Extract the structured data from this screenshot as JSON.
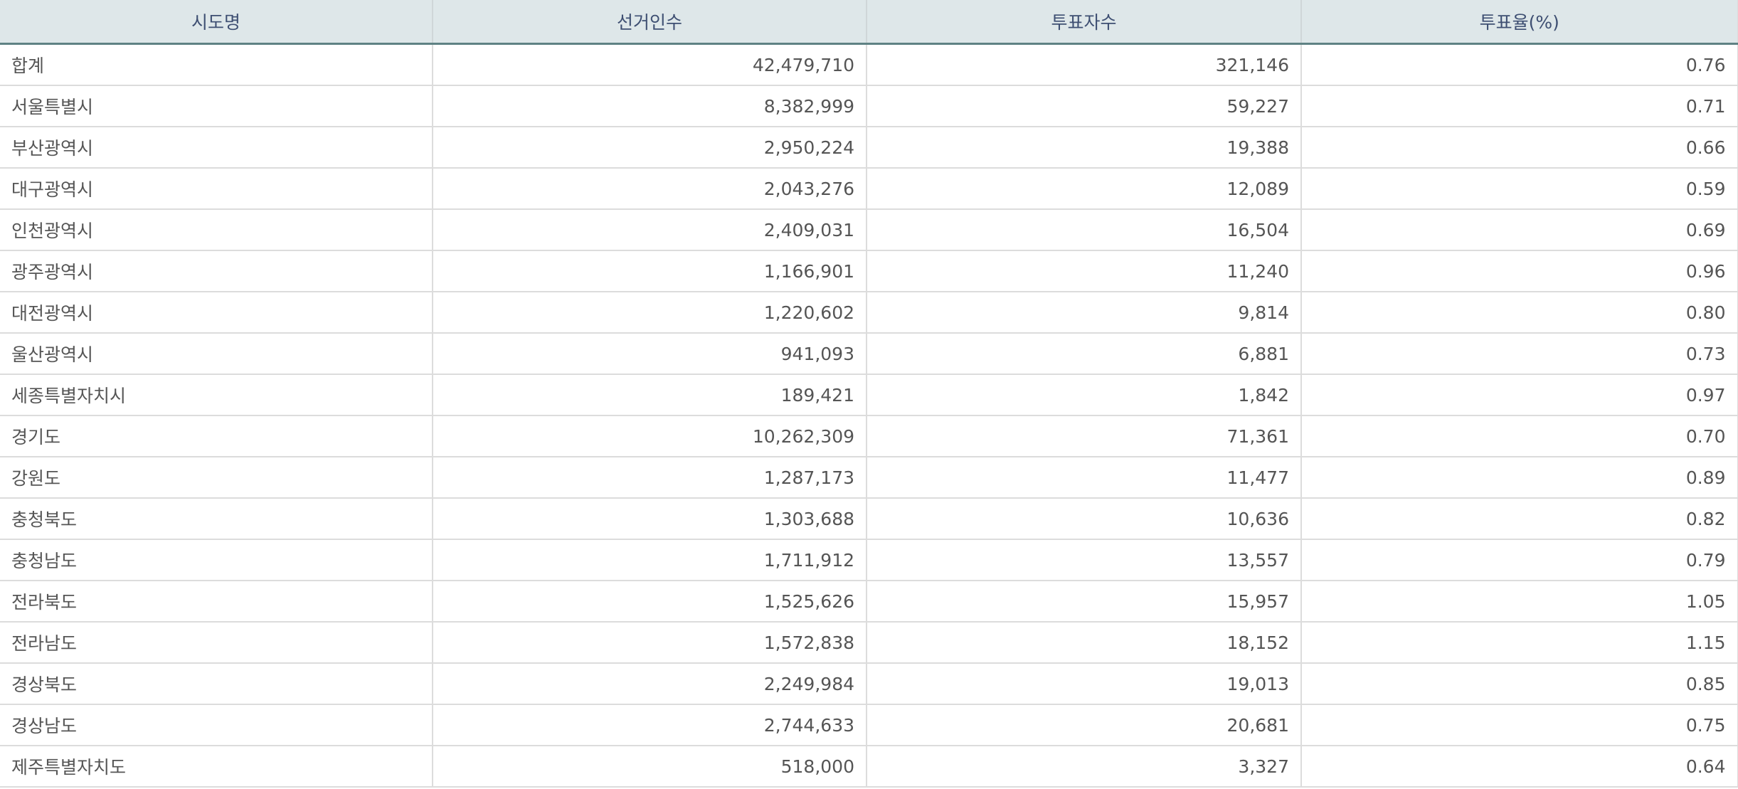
{
  "table": {
    "headers": [
      "시도명",
      "선거인수",
      "투표자수",
      "투표율(%)"
    ],
    "rows": [
      [
        "합계",
        "42,479,710",
        "321,146",
        "0.76"
      ],
      [
        "서울특별시",
        "8,382,999",
        "59,227",
        "0.71"
      ],
      [
        "부산광역시",
        "2,950,224",
        "19,388",
        "0.66"
      ],
      [
        "대구광역시",
        "2,043,276",
        "12,089",
        "0.59"
      ],
      [
        "인천광역시",
        "2,409,031",
        "16,504",
        "0.69"
      ],
      [
        "광주광역시",
        "1,166,901",
        "11,240",
        "0.96"
      ],
      [
        "대전광역시",
        "1,220,602",
        "9,814",
        "0.80"
      ],
      [
        "울산광역시",
        "941,093",
        "6,881",
        "0.73"
      ],
      [
        "세종특별자치시",
        "189,421",
        "1,842",
        "0.97"
      ],
      [
        "경기도",
        "10,262,309",
        "71,361",
        "0.70"
      ],
      [
        "강원도",
        "1,287,173",
        "11,477",
        "0.89"
      ],
      [
        "충청북도",
        "1,303,688",
        "10,636",
        "0.82"
      ],
      [
        "충청남도",
        "1,711,912",
        "13,557",
        "0.79"
      ],
      [
        "전라북도",
        "1,525,626",
        "15,957",
        "1.05"
      ],
      [
        "전라남도",
        "1,572,838",
        "18,152",
        "1.15"
      ],
      [
        "경상북도",
        "2,249,984",
        "19,013",
        "0.85"
      ],
      [
        "경상남도",
        "2,744,633",
        "20,681",
        "0.75"
      ],
      [
        "제주특별자치도",
        "518,000",
        "3,327",
        "0.64"
      ]
    ]
  },
  "colors": {
    "header_bg": "#dee7e9",
    "header_text": "#3e4f72",
    "header_border": "#5f8284",
    "cell_text": "#555555"
  }
}
